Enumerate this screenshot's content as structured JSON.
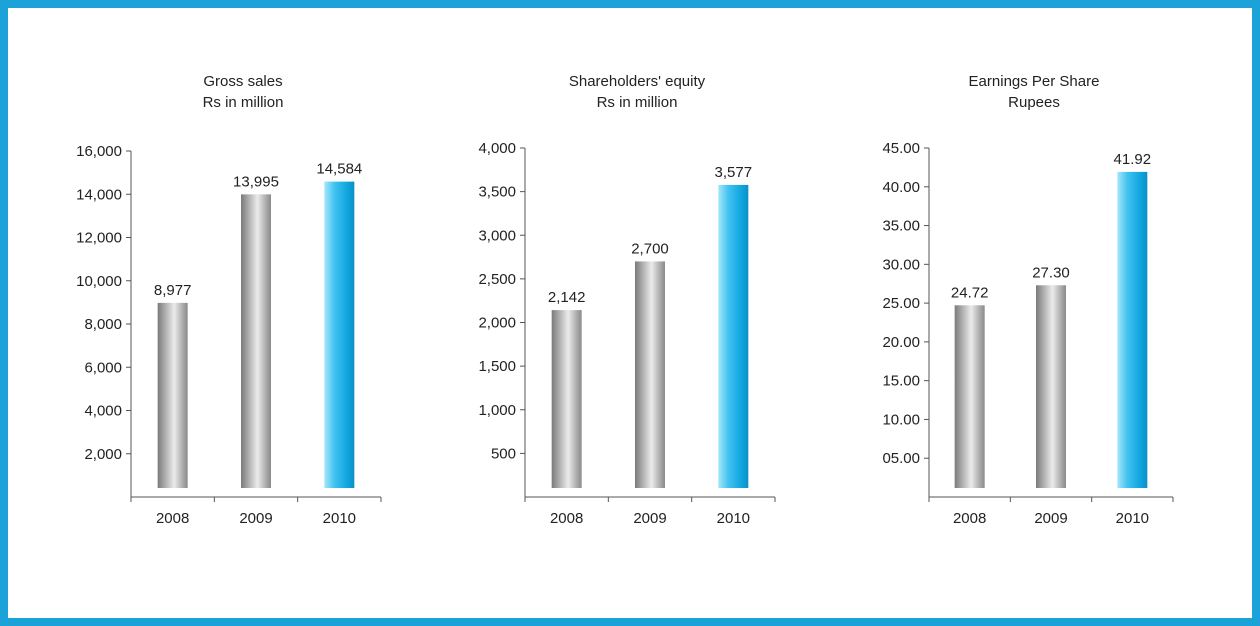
{
  "colors": {
    "frame": "#1ba3d9",
    "bar_grey": "#a9a9a9",
    "bar_highlight": "#1ba3d9"
  },
  "chart_data": [
    {
      "type": "bar",
      "title": "Gross sales",
      "subtitle": "Rs in million",
      "categories": [
        "2008",
        "2009",
        "2010"
      ],
      "values": [
        8977,
        13995,
        14584
      ],
      "value_labels": [
        "8,977",
        "13,995",
        "14,584"
      ],
      "yticks": [
        2000,
        4000,
        6000,
        8000,
        10000,
        12000,
        14000,
        16000
      ],
      "ytick_labels": [
        "2,000",
        "4,000",
        "6,000",
        "8,000",
        "10,000",
        "12,000",
        "14,000",
        "16,000"
      ],
      "ylim": [
        0,
        16000
      ],
      "highlight": "2010",
      "grid": false
    },
    {
      "type": "bar",
      "title": "Shareholders' equity",
      "subtitle": "Rs in million",
      "categories": [
        "2008",
        "2009",
        "2010"
      ],
      "values": [
        2142,
        2700,
        3577
      ],
      "value_labels": [
        "2,142",
        "2,700",
        "3,577"
      ],
      "yticks": [
        500,
        1000,
        1500,
        2000,
        2500,
        3000,
        3500,
        4000
      ],
      "ytick_labels": [
        "500",
        "1,000",
        "1,500",
        "2,000",
        "2,500",
        "3,000",
        "3,500",
        "4,000"
      ],
      "ylim": [
        0,
        4000
      ],
      "highlight": "2010",
      "grid": false
    },
    {
      "type": "bar",
      "title": "Earnings Per Share",
      "subtitle": "Rupees",
      "categories": [
        "2008",
        "2009",
        "2010"
      ],
      "values": [
        24.72,
        27.3,
        41.92
      ],
      "value_labels": [
        "24.72",
        "27.30",
        "41.92"
      ],
      "yticks": [
        5,
        10,
        15,
        20,
        25,
        30,
        35,
        40,
        45
      ],
      "ytick_labels": [
        "05.00",
        "10.00",
        "15.00",
        "20.00",
        "25.00",
        "30.00",
        "35.00",
        "40.00",
        "45.00"
      ],
      "ylim": [
        0,
        45
      ],
      "highlight": "2010",
      "grid": false
    }
  ]
}
